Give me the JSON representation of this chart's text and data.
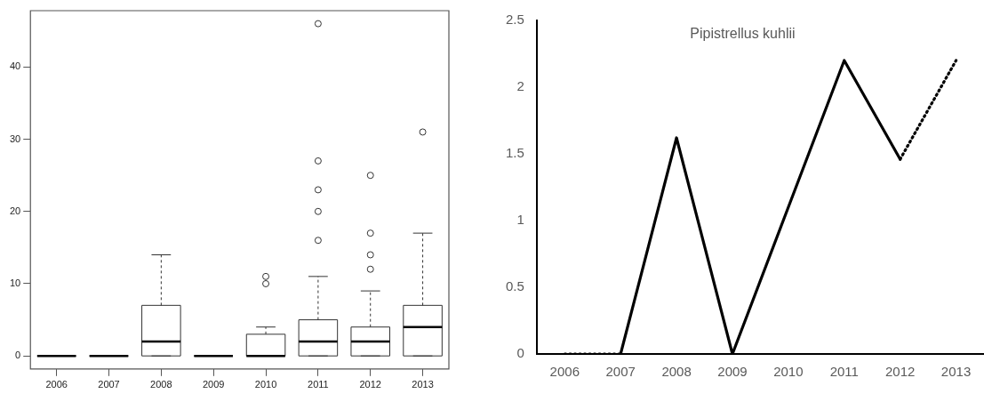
{
  "chart_data": [
    {
      "type": "box",
      "categories": [
        "2006",
        "2007",
        "2008",
        "2009",
        "2010",
        "2011",
        "2012",
        "2013"
      ],
      "boxes": [
        {
          "low": 0,
          "q1": 0,
          "median": 0,
          "q3": 0,
          "high": 0
        },
        {
          "low": 0,
          "q1": 0,
          "median": 0,
          "q3": 0,
          "high": 0
        },
        {
          "low": 0,
          "q1": 0,
          "median": 2,
          "q3": 7,
          "high": 14
        },
        {
          "low": 0,
          "q1": 0,
          "median": 0,
          "q3": 0,
          "high": 0
        },
        {
          "low": 0,
          "q1": 0,
          "median": 0,
          "q3": 3,
          "high": 4,
          "outliers": [
            10,
            11
          ]
        },
        {
          "low": 0,
          "q1": 0,
          "median": 2,
          "q3": 5,
          "high": 11,
          "outliers": [
            16,
            20,
            23,
            27,
            46
          ]
        },
        {
          "low": 0,
          "q1": 0,
          "median": 2,
          "q3": 4,
          "high": 9,
          "outliers": [
            12,
            14,
            17,
            25
          ]
        },
        {
          "low": 0,
          "q1": 0,
          "median": 4,
          "q3": 7,
          "high": 17,
          "outliers": [
            31
          ]
        }
      ],
      "ylim": [
        -1.8,
        47.8
      ],
      "yticks": [
        0,
        10,
        20,
        30,
        40
      ],
      "grid": false
    },
    {
      "type": "line",
      "title": "Pipistrellus kuhlii",
      "categories": [
        "2006",
        "2007",
        "2008",
        "2009",
        "2010",
        "2011",
        "2012",
        "2013"
      ],
      "series": [
        {
          "color": "#000000",
          "line_style": "solid",
          "values": [
            null,
            0,
            1.62,
            0,
            1.1,
            2.2,
            1.46,
            null
          ]
        },
        {
          "color": "#000000",
          "line_style": "dotted",
          "values": [
            0,
            0,
            null,
            null,
            null,
            null,
            1.46,
            2.2
          ]
        }
      ],
      "ylim": [
        0,
        2.5
      ],
      "yticks": [
        0,
        0.5,
        1,
        1.5,
        2,
        2.5
      ],
      "grid": false,
      "marker": "none"
    }
  ]
}
